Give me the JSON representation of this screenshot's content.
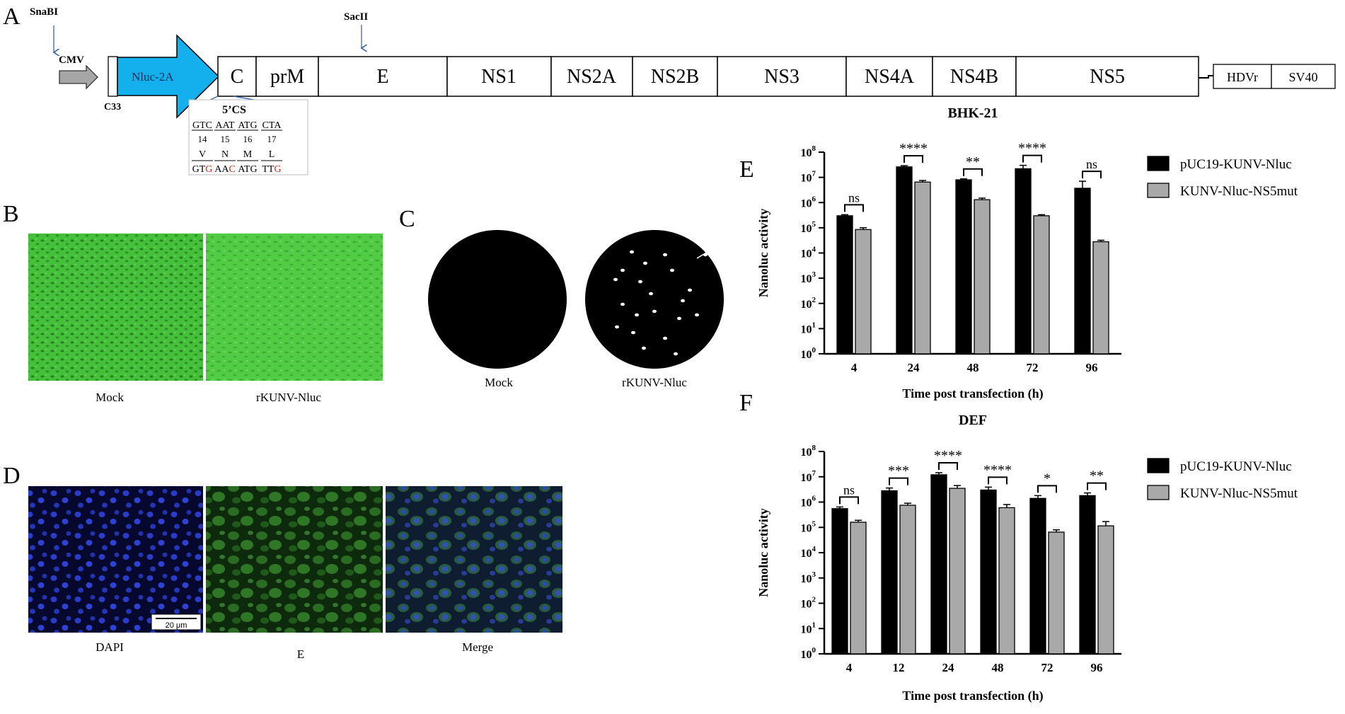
{
  "panel_letters": {
    "a": "A",
    "b": "B",
    "c": "C",
    "d": "D",
    "e": "E",
    "f": "F"
  },
  "panel_a": {
    "snabi": "SnaBI",
    "sacii": "SacII",
    "cmv": "CMV",
    "c33": "C33",
    "nluc": "Nluc-2A",
    "genes": [
      "C",
      "prM",
      "E",
      "NS1",
      "NS2A",
      "NS2B",
      "NS3",
      "NS4A",
      "NS4B",
      "NS5"
    ],
    "tail": [
      "HDVr",
      "SV40"
    ],
    "cs_title": "5’CS",
    "cs_codons": [
      "GTC",
      "AAT",
      "ATG",
      "CTA"
    ],
    "cs_positions": [
      "14",
      "15",
      "16",
      "17"
    ],
    "cs_aa": [
      "V",
      "N",
      "M",
      "L"
    ],
    "cs_mut_prefix": [
      "GT",
      "AA",
      "ATG",
      "TT"
    ],
    "cs_mut_suffix": [
      "G",
      "C",
      "",
      "G"
    ],
    "mut_color": "#d2261c"
  },
  "panel_b": {
    "labels": [
      "Mock",
      "rKUNV-Nluc"
    ],
    "color": "#3fbe34"
  },
  "panel_c": {
    "labels": [
      "Mock",
      "rKUNV-Nluc"
    ]
  },
  "panel_d": {
    "labels": [
      "DAPI",
      "E",
      "Merge"
    ],
    "scale_bar": "20 μm"
  },
  "chart_data": [
    {
      "type": "bar",
      "title": "BHK-21",
      "xlabel": "Time post transfection (h)",
      "ylabel": "Nanoluc activity",
      "y_scale": "log",
      "ylim": [
        1,
        100000000
      ],
      "yticks": [
        "10",
        "10",
        "10",
        "10",
        "10",
        "10",
        "10",
        "10",
        "10"
      ],
      "ytick_exp": [
        "0",
        "1",
        "2",
        "3",
        "4",
        "5",
        "6",
        "7",
        "8"
      ],
      "categories": [
        "4",
        "24",
        "48",
        "72",
        "96"
      ],
      "series": [
        {
          "name": "pUC19-KUNV-Nluc",
          "color": "#000000",
          "values": [
            300000,
            26000000,
            8000000,
            22000000,
            3700000
          ],
          "err": [
            330000,
            29000000,
            8700000,
            30000000,
            7000000
          ]
        },
        {
          "name": "KUNV-Nluc-NS5mut",
          "color": "#a9a9a9",
          "values": [
            85000,
            6500000,
            1300000,
            300000,
            28000
          ],
          "err": [
            100000,
            7500000,
            1500000,
            330000,
            32000
          ]
        }
      ],
      "significance": [
        "ns",
        "****",
        "**",
        "****",
        "ns"
      ],
      "legend_position": "right"
    },
    {
      "type": "bar",
      "title": "DEF",
      "xlabel": "Time post transfection (h)",
      "ylabel": "Nanoluc activity",
      "y_scale": "log",
      "ylim": [
        1,
        100000000
      ],
      "yticks": [
        "10",
        "10",
        "10",
        "10",
        "10",
        "10",
        "10",
        "10",
        "10"
      ],
      "ytick_exp": [
        "0",
        "1",
        "2",
        "3",
        "4",
        "5",
        "6",
        "7",
        "8"
      ],
      "categories": [
        "4",
        "12",
        "24",
        "48",
        "72",
        "96"
      ],
      "series": [
        {
          "name": "pUC19-KUNV-Nluc",
          "color": "#000000",
          "values": [
            550000,
            2800000,
            12000000,
            3000000,
            1400000,
            1800000
          ],
          "err": [
            640000,
            3600000,
            14500000,
            3900000,
            1800000,
            2300000
          ]
        },
        {
          "name": "KUNV-Nluc-NS5mut",
          "color": "#a9a9a9",
          "values": [
            160000,
            750000,
            3500000,
            600000,
            65000,
            115000
          ],
          "err": [
            190000,
            900000,
            4500000,
            800000,
            80000,
            170000
          ]
        }
      ],
      "significance": [
        "ns",
        "***",
        "****",
        "****",
        "*",
        "**"
      ],
      "legend_position": "right"
    }
  ]
}
